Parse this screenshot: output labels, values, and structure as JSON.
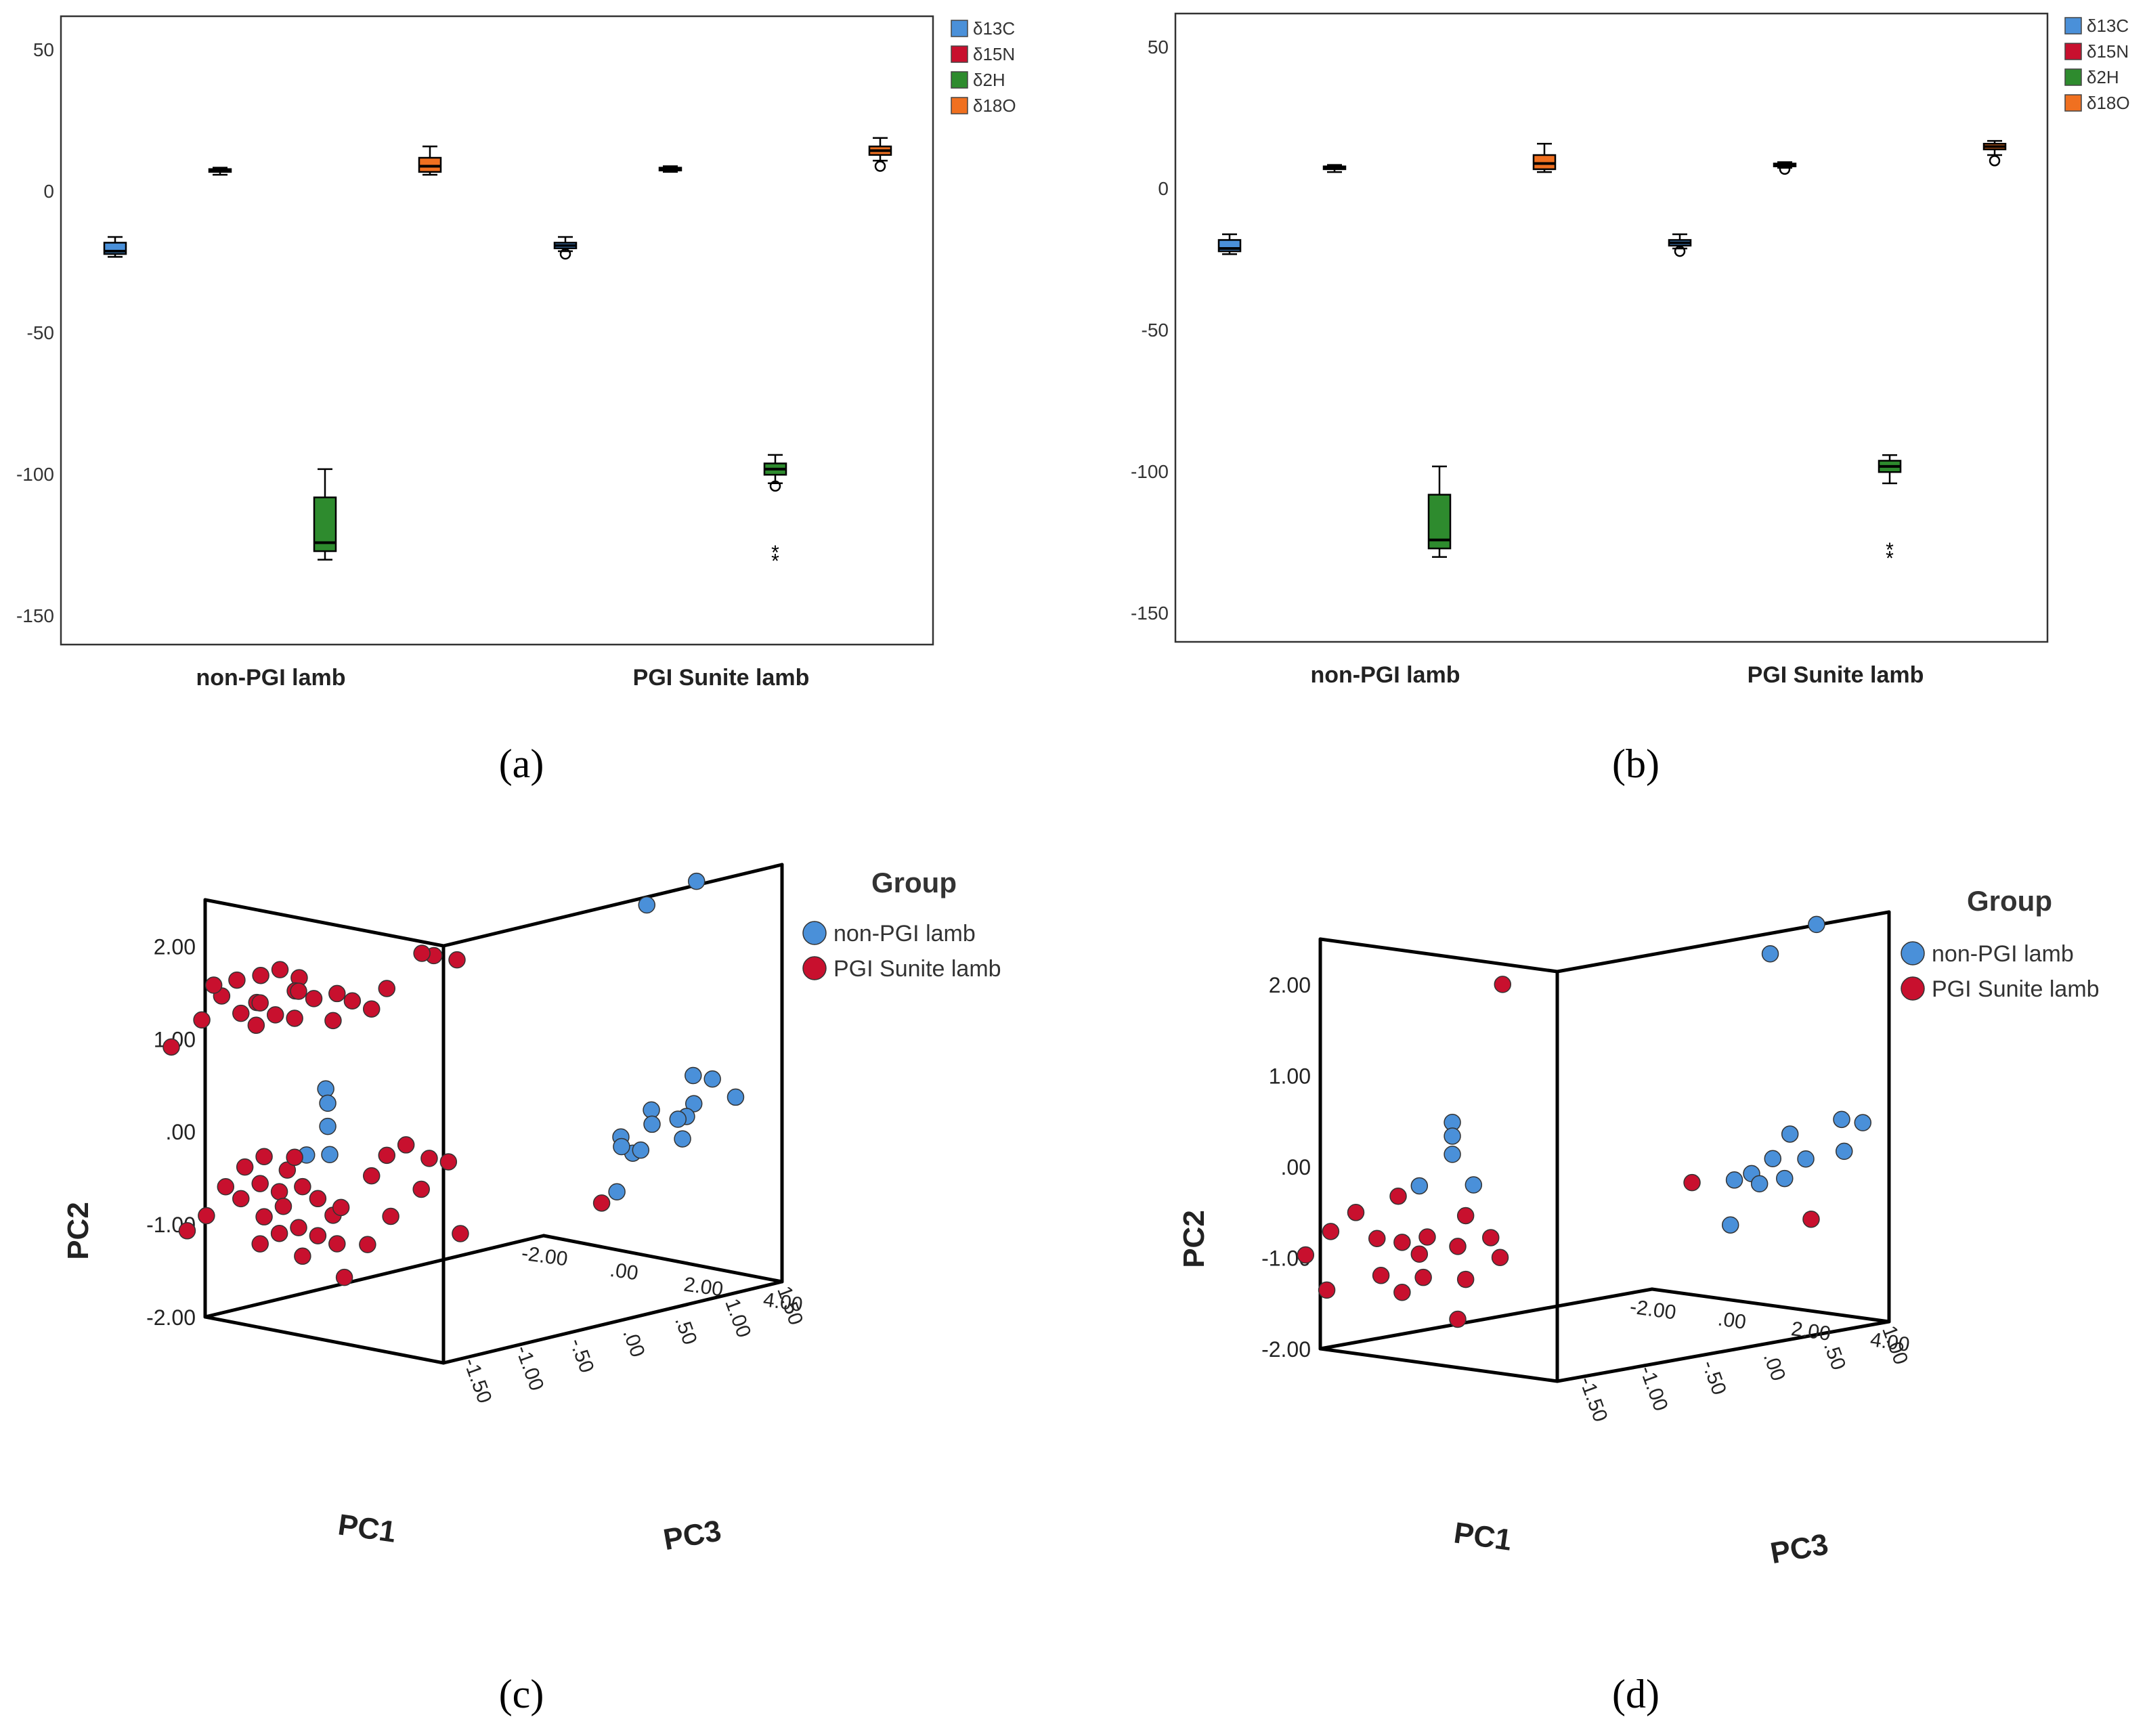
{
  "chart_data": [
    {
      "panel": "a",
      "type": "boxplot",
      "caption": "(a)",
      "categories": [
        "non-PGI lamb",
        "PGI Sunite lamb"
      ],
      "yticks": [
        "50",
        "0",
        "-50",
        "-100",
        "-150"
      ],
      "ylim": [
        -160,
        62
      ],
      "legend": [
        "δ13C",
        "δ15N",
        "δ2H",
        "δ18O"
      ],
      "colors": [
        "#4a90d9",
        "#c8102e",
        "#2e8b2e",
        "#f07020"
      ],
      "series": [
        {
          "name": "δ13C",
          "boxes": [
            {
              "whisker_low": -23,
              "q1": -22,
              "median": -21,
              "q3": -18,
              "whisker_high": -16,
              "outliers": []
            },
            {
              "whisker_low": -21,
              "q1": -20,
              "median": -19,
              "q3": -18,
              "whisker_high": -16,
              "outliers": [
                -22
              ]
            }
          ]
        },
        {
          "name": "δ15N",
          "boxes": [
            {
              "whisker_low": 6,
              "q1": 7,
              "median": 7.5,
              "q3": 8,
              "whisker_high": 8.5,
              "outliers": []
            },
            {
              "whisker_low": 7,
              "q1": 7.5,
              "median": 8,
              "q3": 8.5,
              "whisker_high": 9,
              "outliers": []
            }
          ]
        },
        {
          "name": "δ2H",
          "boxes": [
            {
              "whisker_low": -130,
              "q1": -127,
              "median": -124,
              "q3": -108,
              "whisker_high": -98,
              "outliers": []
            },
            {
              "whisker_low": -103,
              "q1": -100,
              "median": -98,
              "q3": -96,
              "whisker_high": -93,
              "outliers": [
                -104
              ],
              "extremes": [
                -126,
                -129
              ]
            }
          ]
        },
        {
          "name": "δ18O",
          "boxes": [
            {
              "whisker_low": 6,
              "q1": 7,
              "median": 9,
              "q3": 12,
              "whisker_high": 16,
              "outliers": []
            },
            {
              "whisker_low": 11,
              "q1": 13,
              "median": 14.5,
              "q3": 16,
              "whisker_high": 19,
              "outliers": [
                9
              ]
            }
          ]
        }
      ]
    },
    {
      "panel": "b",
      "type": "boxplot",
      "caption": "(b)",
      "categories": [
        "non-PGI lamb",
        "PGI Sunite lamb"
      ],
      "yticks": [
        "50",
        "0",
        "-50",
        "-100",
        "-150"
      ],
      "ylim": [
        -160,
        62
      ],
      "legend": [
        "δ13C",
        "δ15N",
        "δ2H",
        "δ18O"
      ],
      "colors": [
        "#4a90d9",
        "#c8102e",
        "#2e8b2e",
        "#f07020"
      ],
      "series": [
        {
          "name": "δ13C",
          "boxes": [
            {
              "whisker_low": -23,
              "q1": -22,
              "median": -21,
              "q3": -18,
              "whisker_high": -16,
              "outliers": []
            },
            {
              "whisker_low": -21,
              "q1": -20,
              "median": -19,
              "q3": -18,
              "whisker_high": -16,
              "outliers": [
                -22
              ]
            }
          ]
        },
        {
          "name": "δ15N",
          "boxes": [
            {
              "whisker_low": 6,
              "q1": 7,
              "median": 7.5,
              "q3": 8,
              "whisker_high": 8.5,
              "outliers": []
            },
            {
              "whisker_low": 7.5,
              "q1": 8,
              "median": 8.5,
              "q3": 9,
              "whisker_high": 9.5,
              "outliers": [
                7
              ]
            }
          ]
        },
        {
          "name": "δ2H",
          "boxes": [
            {
              "whisker_low": -130,
              "q1": -127,
              "median": -124,
              "q3": -108,
              "whisker_high": -98,
              "outliers": []
            },
            {
              "whisker_low": -104,
              "q1": -100,
              "median": -98,
              "q3": -96,
              "whisker_high": -94,
              "outliers": [],
              "extremes": [
                -126,
                -129
              ]
            }
          ]
        },
        {
          "name": "δ18O",
          "boxes": [
            {
              "whisker_low": 6,
              "q1": 7,
              "median": 9,
              "q3": 12,
              "whisker_high": 16,
              "outliers": []
            },
            {
              "whisker_low": 12,
              "q1": 14,
              "median": 15,
              "q3": 16,
              "whisker_high": 17,
              "outliers": [
                10
              ]
            }
          ]
        }
      ]
    },
    {
      "panel": "c",
      "type": "scatter3d",
      "caption": "(c)",
      "legend_title": "Group",
      "legend": [
        "non-PGI lamb",
        "PGI Sunite lamb"
      ],
      "colors": [
        "#4a90d9",
        "#c8102e"
      ],
      "axis_labels": {
        "x": "PC1",
        "y": "PC2",
        "z": "PC3"
      },
      "xticks": [
        "-2.00",
        ".00",
        "2.00",
        "4.00"
      ],
      "yticks": [
        "2.00",
        "1.00",
        ".00",
        "-1.00",
        "-2.00"
      ],
      "zticks": [
        "1.50",
        "1.00",
        ".50",
        ".00",
        "-.50",
        "-1.00",
        "-1.50"
      ],
      "xlim": [
        -2,
        4
      ],
      "ylim": [
        -2,
        2.5
      ],
      "zlim": [
        -1.5,
        1.5
      ],
      "series": [
        {
          "name": "non-PGI lamb",
          "points": [
            [
              2.3,
              2.1,
              0.9
            ],
            [
              2.7,
              2.3,
              1.2
            ],
            [
              -0.1,
              0.5,
              -1.1
            ],
            [
              -0.05,
              0.35,
              -1.1
            ],
            [
              -0.05,
              0.1,
              -1.1
            ],
            [
              0.0,
              -0.2,
              -1.1
            ],
            [
              -0.3,
              -0.2,
              -1.2
            ],
            [
              2.9,
              0.25,
              1.1
            ],
            [
              3.1,
              0.2,
              1.2
            ],
            [
              3.2,
              0.0,
              1.0
            ],
            [
              3.4,
              0.0,
              1.3
            ],
            [
              3.3,
              -0.1,
              0.9
            ],
            [
              2.7,
              -0.05,
              0.8
            ],
            [
              2.8,
              -0.2,
              1.0
            ],
            [
              3.0,
              -0.15,
              0.7
            ],
            [
              3.2,
              -0.35,
              0.9
            ],
            [
              2.5,
              -0.3,
              0.6
            ],
            [
              2.8,
              -0.45,
              0.6
            ],
            [
              3.0,
              -0.4,
              0.6
            ],
            [
              2.8,
              -0.35,
              0.5
            ],
            [
              2.4,
              -0.9,
              0.6
            ]
          ]
        },
        {
          "name": "PGI Sunite lamb",
          "points": [
            [
              -0.6,
              1.8,
              -1.5
            ],
            [
              -0.4,
              1.85,
              -1.4
            ],
            [
              -0.2,
              1.75,
              -1.3
            ],
            [
              -0.3,
              1.6,
              -1.3
            ],
            [
              -0.5,
              1.55,
              -1.2
            ],
            [
              -0.7,
              1.5,
              -1.5
            ],
            [
              -0.9,
              1.45,
              -1.4
            ],
            [
              -0.8,
              1.3,
              -1.3
            ],
            [
              -1.0,
              1.2,
              -1.4
            ],
            [
              -1.1,
              1.35,
              -1.5
            ],
            [
              -1.3,
              1.55,
              -1.6
            ],
            [
              -1.2,
              1.7,
              -1.5
            ],
            [
              -1.5,
              1.65,
              -1.6
            ],
            [
              -0.4,
              1.45,
              -1.1
            ],
            [
              -0.1,
              1.5,
              -1.0
            ],
            [
              0.0,
              1.4,
              -0.9
            ],
            [
              -0.2,
              1.2,
              -1.0
            ],
            [
              0.2,
              1.3,
              -0.8
            ],
            [
              1.2,
              1.9,
              -0.6
            ],
            [
              1.5,
              1.85,
              -0.5
            ],
            [
              -1.8,
              1.25,
              -1.6
            ],
            [
              -2.0,
              1.0,
              -1.8
            ],
            [
              0.9,
              1.9,
              -0.6
            ],
            [
              0.3,
              1.5,
              -0.7
            ],
            [
              -0.6,
              1.25,
              -1.2
            ],
            [
              -0.8,
              -0.2,
              -1.4
            ],
            [
              -1.0,
              -0.3,
              -1.5
            ],
            [
              -0.5,
              -0.35,
              -1.3
            ],
            [
              -1.2,
              -0.5,
              -1.6
            ],
            [
              -1.1,
              -0.65,
              -1.5
            ],
            [
              -0.9,
              -0.5,
              -1.4
            ],
            [
              -0.7,
              -0.6,
              -1.3
            ],
            [
              -0.4,
              -0.55,
              -1.2
            ],
            [
              -0.3,
              -0.7,
              -1.1
            ],
            [
              -0.6,
              -0.75,
              -1.3
            ],
            [
              -0.8,
              -0.85,
              -1.4
            ],
            [
              -1.4,
              -0.8,
              -1.7
            ],
            [
              -0.2,
              -0.9,
              -1.0
            ],
            [
              0.0,
              -0.8,
              -1.0
            ],
            [
              -0.5,
              -1.0,
              -1.2
            ],
            [
              -0.7,
              -1.05,
              -1.3
            ],
            [
              -0.9,
              -1.15,
              -1.4
            ],
            [
              -0.3,
              -1.1,
              -1.1
            ],
            [
              0.2,
              -0.5,
              -0.8
            ],
            [
              0.3,
              -0.3,
              -0.7
            ],
            [
              0.5,
              -0.2,
              -0.6
            ],
            [
              0.8,
              -0.35,
              -0.5
            ],
            [
              1.0,
              -0.4,
              -0.4
            ],
            [
              0.6,
              -0.7,
              -0.5
            ],
            [
              0.4,
              -0.95,
              -0.7
            ],
            [
              -1.6,
              -0.95,
              -1.8
            ],
            [
              -0.4,
              -1.3,
              -1.2
            ],
            [
              -0.1,
              -1.2,
              -1.0
            ],
            [
              1.3,
              -1.15,
              -0.4
            ],
            [
              2.3,
              -1.0,
              0.5
            ],
            [
              -0.2,
              -1.6,
              -0.9
            ],
            [
              0.1,
              -1.25,
              -0.8
            ],
            [
              -0.6,
              -0.25,
              -1.2
            ]
          ]
        }
      ]
    },
    {
      "panel": "d",
      "type": "scatter3d",
      "caption": "(d)",
      "legend_title": "Group",
      "legend": [
        "non-PGI lamb",
        "PGI Sunite lamb"
      ],
      "colors": [
        "#4a90d9",
        "#c8102e"
      ],
      "axis_labels": {
        "x": "PC1",
        "y": "PC2",
        "z": "PC3"
      },
      "xticks": [
        "-2.00",
        ".00",
        "2.00",
        "4.00"
      ],
      "yticks": [
        "2.00",
        "1.00",
        ".00",
        "-1.00",
        "-2.00"
      ],
      "zticks": [
        "1.00",
        ".50",
        ".00",
        "-.50",
        "-1.00",
        "-1.50"
      ],
      "xlim": [
        -2,
        4
      ],
      "ylim": [
        -2,
        2.5
      ],
      "zlim": [
        -1.5,
        1.0
      ],
      "series": [
        {
          "name": "non-PGI lamb",
          "points": [
            [
              2.0,
              2.0,
              0.7
            ],
            [
              2.5,
              2.3,
              0.9
            ],
            [
              0.0,
              0.5,
              -1.1
            ],
            [
              0.0,
              0.35,
              -1.1
            ],
            [
              0.0,
              0.15,
              -1.1
            ],
            [
              0.2,
              -0.2,
              -1.0
            ],
            [
              -0.5,
              -0.2,
              -1.2
            ],
            [
              2.8,
              0.15,
              1.0
            ],
            [
              3.0,
              0.1,
              1.1
            ],
            [
              3.2,
              -0.15,
              0.9
            ],
            [
              2.5,
              0.05,
              0.7
            ],
            [
              2.9,
              -0.2,
              0.7
            ],
            [
              2.4,
              -0.2,
              0.6
            ],
            [
              2.2,
              -0.35,
              0.5
            ],
            [
              2.4,
              -0.45,
              0.5
            ],
            [
              2.7,
              -0.4,
              0.6
            ],
            [
              2.1,
              -0.4,
              0.4
            ],
            [
              2.0,
              -0.9,
              0.4
            ]
          ]
        },
        {
          "name": "PGI Sunite lamb",
          "points": [
            [
              0.6,
              2.0,
              -0.9
            ],
            [
              -0.7,
              -0.3,
              -1.3
            ],
            [
              -1.1,
              -0.45,
              -1.5
            ],
            [
              -1.4,
              -0.65,
              -1.6
            ],
            [
              -0.9,
              -0.75,
              -1.4
            ],
            [
              -0.6,
              -0.8,
              -1.3
            ],
            [
              -0.3,
              -0.75,
              -1.2
            ],
            [
              0.0,
              -0.55,
              -1.0
            ],
            [
              0.3,
              -0.8,
              -0.9
            ],
            [
              -0.5,
              -0.95,
              -1.2
            ],
            [
              -1.7,
              -0.9,
              -1.7
            ],
            [
              -0.2,
              -0.9,
              -1.0
            ],
            [
              0.2,
              -1.05,
              -0.8
            ],
            [
              -0.8,
              -1.15,
              -1.4
            ],
            [
              -0.4,
              -1.2,
              -1.2
            ],
            [
              0.0,
              -1.25,
              -1.0
            ],
            [
              -1.5,
              -1.3,
              -1.6
            ],
            [
              -0.6,
              -1.35,
              -1.3
            ],
            [
              -0.2,
              -1.7,
              -1.0
            ],
            [
              1.7,
              -0.4,
              0.2
            ],
            [
              2.7,
              -0.9,
              0.8
            ]
          ]
        }
      ]
    }
  ]
}
